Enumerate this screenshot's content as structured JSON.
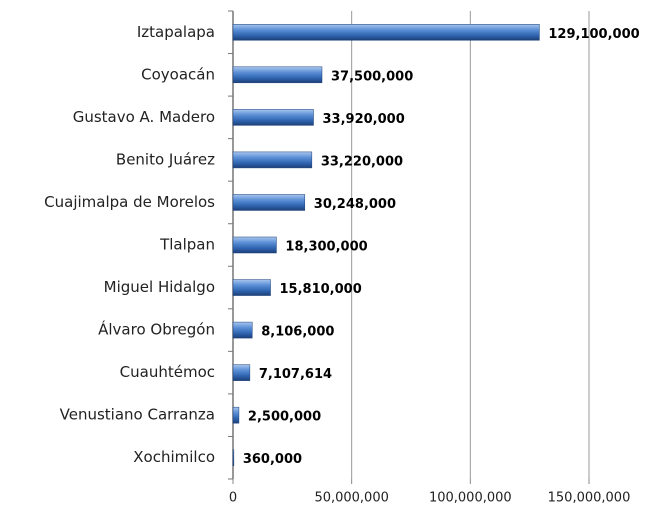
{
  "chart_data": {
    "type": "bar",
    "orientation": "horizontal",
    "categories": [
      "Iztapalapa",
      "Coyoacán",
      "Gustavo A. Madero",
      "Benito Juárez",
      "Cuajimalpa de Morelos",
      "Tlalpan",
      "Miguel Hidalgo",
      "Álvaro Obregón",
      "Cuauhtémoc",
      "Venustiano Carranza",
      "Xochimilco"
    ],
    "values": [
      129100000,
      37500000,
      33920000,
      33220000,
      30248000,
      18300000,
      15810000,
      8106000,
      7107614,
      2500000,
      360000
    ],
    "value_labels": [
      "129,100,000",
      "37,500,000",
      "33,920,000",
      "33,220,000",
      "30,248,000",
      "18,300,000",
      "15,810,000",
      "8,106,000",
      "7,107,614",
      "2,500,000",
      "360,000"
    ],
    "color": "#4f81bd",
    "xlim": [
      0,
      150000000
    ],
    "xticks": [
      0,
      {
        "value": 50000000,
        "label": "50,000,000"
      },
      {
        "value": 100000000,
        "label": "100,000,000"
      },
      {
        "value": 150000000,
        "label": "150,000,000"
      }
    ],
    "grid": true
  }
}
